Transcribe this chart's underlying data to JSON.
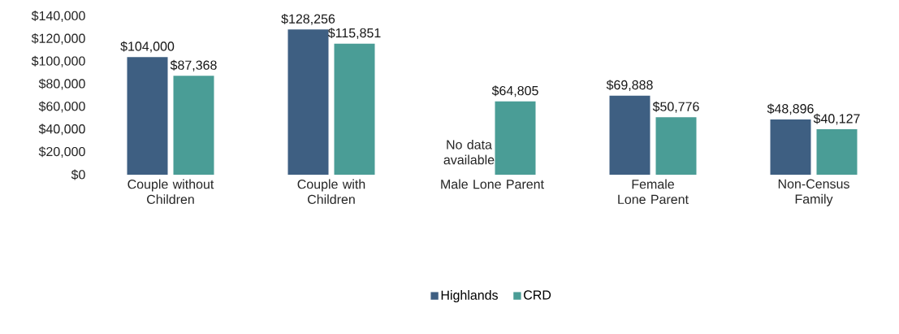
{
  "chart_data": {
    "type": "bar",
    "categories": [
      "Couple without Children",
      "Couple with Children",
      "Male Lone Parent",
      "Female Lone Parent",
      "Non-Census Family"
    ],
    "series": [
      {
        "name": "Highlands",
        "color": "#3e5f82",
        "values": [
          104000,
          128256,
          null,
          69888,
          48896
        ],
        "value_labels": [
          "$104,000",
          "$128,256",
          null,
          "$69,888",
          "$48,896"
        ]
      },
      {
        "name": "CRD",
        "color": "#4a9d96",
        "values": [
          87368,
          115851,
          64805,
          50776,
          40127
        ],
        "value_labels": [
          "$87,368",
          "$115,851",
          "$64,805",
          "$50,776",
          "$40,127"
        ]
      }
    ],
    "ylim": [
      0,
      140000
    ],
    "yticks": [
      {
        "value": 0,
        "label": "$0"
      },
      {
        "value": 20000,
        "label": "$20,000"
      },
      {
        "value": 40000,
        "label": "$40,000"
      },
      {
        "value": 60000,
        "label": "$60,000"
      },
      {
        "value": 80000,
        "label": "$80,000"
      },
      {
        "value": 100000,
        "label": "$100,000"
      },
      {
        "value": 120000,
        "label": "$120,000"
      },
      {
        "value": 140000,
        "label": "$140,000"
      }
    ],
    "annotations": [
      {
        "text": "No data available",
        "x": "Male Lone Parent",
        "y": 20000
      }
    ],
    "legend": "bottom",
    "grid": false
  }
}
